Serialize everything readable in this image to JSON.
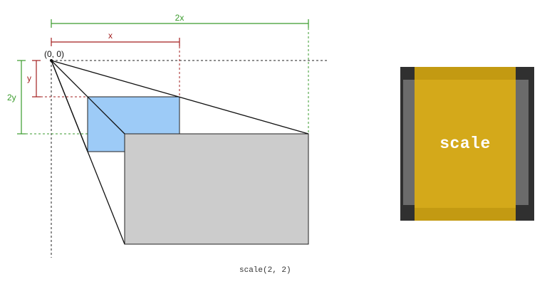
{
  "diagram": {
    "labels": {
      "two_x": "2x",
      "x": "x",
      "origin": "(0, 0)",
      "y": "y",
      "two_y": "2y"
    },
    "caption": "scale(2, 2)",
    "colors": {
      "two_x_dimension": "#3a9b2c",
      "x_dimension": "#a31f1f",
      "y_dimension": "#a31f1f",
      "two_y_dimension": "#3a9b2c",
      "original_rect_fill": "#9dcbf7",
      "scaled_rect_fill": "#cccccc",
      "outline": "#000000"
    }
  },
  "icon": {
    "label": "scale",
    "colors": {
      "frame": "#303030",
      "inner": "#6b6b6b",
      "gold": "#d4a91a",
      "text": "#ffffff"
    }
  }
}
